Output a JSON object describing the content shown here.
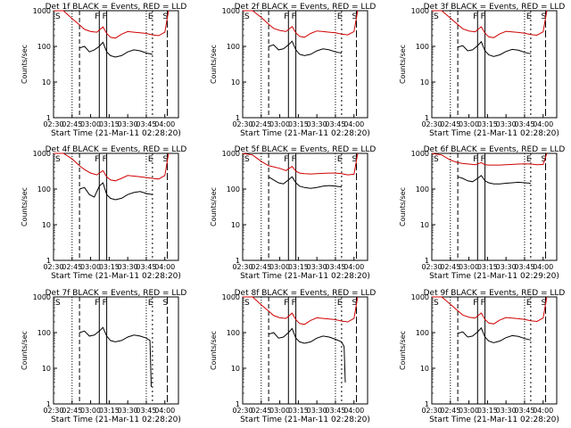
{
  "figure": {
    "background": "#ffffff",
    "colors": {
      "events": "#000000",
      "lld": "#d00000",
      "axes": "#000000"
    }
  },
  "chart_data": [
    {
      "type": "line",
      "title": "Det 1f BLACK = Events, RED = LLD",
      "xlabel": "Start Time (21-Mar-11 02:28:20)",
      "ylabel": "Counts/sec",
      "x_ticks": [
        "02:30",
        "02:45",
        "03:00",
        "03:15",
        "03:30",
        "03:45",
        "04:00"
      ],
      "y_ticks": [
        "1",
        "10",
        "100",
        "1000"
      ],
      "ylim": [
        1,
        1000
      ],
      "y_scale": "log",
      "markers": [
        "S",
        "F",
        "F",
        "E",
        "S"
      ],
      "series": [
        {
          "name": "Events",
          "x": [
            "02:51",
            "02:55",
            "02:59",
            "03:03",
            "03:07",
            "03:10",
            "03:13",
            "03:16",
            "03:20",
            "03:25",
            "03:30",
            "03:35",
            "03:40",
            "03:45",
            "03:50"
          ],
          "y": [
            90,
            100,
            70,
            80,
            100,
            130,
            70,
            55,
            50,
            55,
            70,
            80,
            75,
            65,
            60
          ]
        },
        {
          "name": "LLD",
          "x": [
            "02:30",
            "02:38",
            "02:45",
            "02:51",
            "02:55",
            "03:00",
            "03:05",
            "03:10",
            "03:13",
            "03:16",
            "03:20",
            "03:25",
            "03:30",
            "03:35",
            "03:40",
            "03:45",
            "03:50",
            "03:55",
            "04:00",
            "04:03"
          ],
          "y": [
            1000,
            1000,
            600,
            400,
            300,
            260,
            250,
            350,
            230,
            180,
            170,
            220,
            260,
            250,
            240,
            230,
            210,
            200,
            250,
            1000
          ]
        }
      ]
    },
    {
      "type": "line",
      "title": "Det 2f BLACK = Events, RED = LLD",
      "xlabel": "Start Time (21-Mar-11 02:28:20)",
      "ylabel": "Counts/sec",
      "x_ticks": [
        "02:30",
        "02:45",
        "03:00",
        "03:15",
        "03:30",
        "03:45",
        "04:00"
      ],
      "y_ticks": [
        "1",
        "10",
        "100",
        "1000"
      ],
      "ylim": [
        1,
        1000
      ],
      "y_scale": "log",
      "markers": [
        "S",
        "F",
        "F",
        "E",
        "S"
      ],
      "series": [
        {
          "name": "Events",
          "x": [
            "02:51",
            "02:55",
            "02:59",
            "03:03",
            "03:07",
            "03:10",
            "03:13",
            "03:16",
            "03:20",
            "03:25",
            "03:30",
            "03:35",
            "03:40",
            "03:45",
            "03:50"
          ],
          "y": [
            100,
            110,
            80,
            85,
            110,
            140,
            80,
            60,
            55,
            60,
            75,
            85,
            80,
            70,
            65
          ]
        },
        {
          "name": "LLD",
          "x": [
            "02:30",
            "02:38",
            "02:45",
            "02:51",
            "02:55",
            "03:00",
            "03:05",
            "03:10",
            "03:13",
            "03:16",
            "03:20",
            "03:25",
            "03:30",
            "03:35",
            "03:40",
            "03:45",
            "03:50",
            "03:55",
            "04:00",
            "04:03"
          ],
          "y": [
            1000,
            1000,
            650,
            420,
            320,
            280,
            260,
            360,
            240,
            190,
            180,
            230,
            270,
            260,
            250,
            240,
            220,
            210,
            260,
            1000
          ]
        }
      ]
    },
    {
      "type": "line",
      "title": "Det 3f BLACK = Events, RED = LLD",
      "xlabel": "Start Time (21-Mar-11 02:28:20)",
      "ylabel": "Counts/sec",
      "x_ticks": [
        "02:30",
        "02:45",
        "03:00",
        "03:15",
        "03:30",
        "03:45",
        "04:00"
      ],
      "y_ticks": [
        "1",
        "10",
        "100",
        "1000"
      ],
      "ylim": [
        1,
        1000
      ],
      "y_scale": "log",
      "markers": [
        "S",
        "F",
        "F",
        "E",
        "S"
      ],
      "series": [
        {
          "name": "Events",
          "x": [
            "02:51",
            "02:55",
            "02:59",
            "03:03",
            "03:07",
            "03:10",
            "03:13",
            "03:16",
            "03:20",
            "03:25",
            "03:30",
            "03:35",
            "03:40",
            "03:45",
            "03:50"
          ],
          "y": [
            95,
            105,
            75,
            80,
            105,
            135,
            75,
            58,
            52,
            58,
            72,
            82,
            78,
            68,
            62
          ]
        },
        {
          "name": "LLD",
          "x": [
            "02:30",
            "02:38",
            "02:45",
            "02:51",
            "02:55",
            "03:00",
            "03:05",
            "03:10",
            "03:13",
            "03:16",
            "03:20",
            "03:25",
            "03:30",
            "03:35",
            "03:40",
            "03:45",
            "03:50",
            "03:55",
            "04:00",
            "04:03"
          ],
          "y": [
            1000,
            1000,
            620,
            410,
            310,
            270,
            255,
            355,
            235,
            185,
            175,
            225,
            265,
            255,
            245,
            235,
            215,
            205,
            255,
            1000
          ]
        }
      ]
    },
    {
      "type": "line",
      "title": "Det 4f BLACK = Events, RED = LLD",
      "xlabel": "Start Time (21-Mar-11 02:28:20)",
      "ylabel": "Counts/sec",
      "x_ticks": [
        "02:30",
        "02:45",
        "03:00",
        "03:15",
        "03:30",
        "03:45",
        "04:00"
      ],
      "y_ticks": [
        "1",
        "10",
        "100",
        "1000"
      ],
      "ylim": [
        1,
        1000
      ],
      "y_scale": "log",
      "markers": [
        "S",
        "F",
        "F",
        "E",
        "S"
      ],
      "series": [
        {
          "name": "Events",
          "x": [
            "02:51",
            "02:55",
            "02:59",
            "03:03",
            "03:07",
            "03:10",
            "03:13",
            "03:16",
            "03:20",
            "03:25",
            "03:30",
            "03:35",
            "03:40",
            "03:45",
            "03:50"
          ],
          "y": [
            100,
            110,
            70,
            60,
            120,
            150,
            70,
            55,
            50,
            55,
            70,
            80,
            85,
            75,
            70
          ]
        },
        {
          "name": "LLD",
          "x": [
            "02:30",
            "02:38",
            "02:45",
            "02:51",
            "02:55",
            "03:00",
            "03:05",
            "03:10",
            "03:13",
            "03:16",
            "03:20",
            "03:25",
            "03:30",
            "03:35",
            "03:40",
            "03:45",
            "03:50",
            "03:55",
            "04:00",
            "04:03"
          ],
          "y": [
            1000,
            1000,
            700,
            450,
            350,
            280,
            250,
            330,
            220,
            180,
            170,
            200,
            240,
            230,
            220,
            210,
            200,
            190,
            240,
            1000
          ]
        }
      ]
    },
    {
      "type": "line",
      "title": "Det 5f BLACK = Events, RED = LLD",
      "xlabel": "Start Time (21-Mar-11 02:28:20)",
      "ylabel": "Counts/sec",
      "x_ticks": [
        "02:30",
        "02:45",
        "03:00",
        "03:15",
        "03:30",
        "03:45",
        "04:00"
      ],
      "y_ticks": [
        "1",
        "10",
        "100",
        "1000"
      ],
      "ylim": [
        1,
        1000
      ],
      "y_scale": "log",
      "markers": [
        "S",
        "F",
        "F",
        "E",
        "S"
      ],
      "series": [
        {
          "name": "Events",
          "x": [
            "02:51",
            "02:55",
            "02:59",
            "03:03",
            "03:07",
            "03:10",
            "03:13",
            "03:16",
            "03:20",
            "03:25",
            "03:30",
            "03:35",
            "03:40",
            "03:45",
            "03:50"
          ],
          "y": [
            220,
            180,
            150,
            140,
            180,
            220,
            150,
            120,
            110,
            105,
            110,
            120,
            125,
            120,
            115
          ]
        },
        {
          "name": "LLD",
          "x": [
            "02:30",
            "02:38",
            "02:45",
            "02:51",
            "02:55",
            "03:00",
            "03:05",
            "03:10",
            "03:13",
            "03:16",
            "03:20",
            "03:25",
            "03:30",
            "03:35",
            "03:40",
            "03:45",
            "03:50",
            "03:55",
            "04:00",
            "04:03"
          ],
          "y": [
            1000,
            900,
            600,
            450,
            420,
            380,
            330,
            430,
            320,
            280,
            270,
            265,
            270,
            275,
            280,
            280,
            270,
            250,
            260,
            1000
          ]
        }
      ]
    },
    {
      "type": "line",
      "title": "Det 6f BLACK = Events, RED = LLD",
      "xlabel": "Start Time (21-Mar-11 02:29:20)",
      "ylabel": "Counts/sec",
      "x_ticks": [
        "02:30",
        "02:45",
        "03:00",
        "03:15",
        "03:30",
        "03:45",
        "04:00"
      ],
      "y_ticks": [
        "1",
        "10",
        "100",
        "1000"
      ],
      "ylim": [
        1,
        1000
      ],
      "y_scale": "log",
      "markers": [
        "S",
        "F",
        "F",
        "E",
        "S"
      ],
      "series": [
        {
          "name": "Events",
          "x": [
            "02:51",
            "02:55",
            "02:59",
            "03:03",
            "03:07",
            "03:10",
            "03:13",
            "03:16",
            "03:20",
            "03:25",
            "03:30",
            "03:35",
            "03:40",
            "03:45",
            "03:50"
          ],
          "y": [
            220,
            200,
            170,
            160,
            200,
            240,
            170,
            150,
            140,
            140,
            145,
            150,
            155,
            150,
            145
          ]
        },
        {
          "name": "LLD",
          "x": [
            "02:30",
            "02:38",
            "02:45",
            "02:51",
            "02:55",
            "03:00",
            "03:05",
            "03:10",
            "03:13",
            "03:16",
            "03:20",
            "03:25",
            "03:30",
            "03:35",
            "03:40",
            "03:45",
            "03:50",
            "03:55",
            "04:00",
            "04:03"
          ],
          "y": [
            1000,
            900,
            650,
            550,
            520,
            500,
            480,
            550,
            480,
            470,
            470,
            470,
            480,
            490,
            500,
            510,
            500,
            480,
            490,
            1000
          ]
        }
      ]
    },
    {
      "type": "line",
      "title": "Det 7f BLACK = Events, RED = LLD",
      "xlabel": "Start Time (21-Mar-11 02:28:20)",
      "ylabel": "Counts/sec",
      "x_ticks": [
        "02:30",
        "02:45",
        "03:00",
        "03:15",
        "03:30",
        "03:45",
        "04:00"
      ],
      "y_ticks": [
        "1",
        "10",
        "100",
        "1000"
      ],
      "ylim": [
        1,
        1000
      ],
      "y_scale": "log",
      "markers": [
        "S",
        "F",
        "F",
        "E",
        "S"
      ],
      "series": [
        {
          "name": "Events",
          "x": [
            "02:51",
            "02:55",
            "02:59",
            "03:03",
            "03:07",
            "03:10",
            "03:13",
            "03:16",
            "03:20",
            "03:25",
            "03:30",
            "03:35",
            "03:40",
            "03:45",
            "03:48",
            "03:49"
          ],
          "y": [
            100,
            110,
            80,
            85,
            110,
            140,
            80,
            60,
            55,
            60,
            75,
            85,
            80,
            70,
            60,
            3
          ]
        }
      ]
    },
    {
      "type": "line",
      "title": "Det 8f BLACK = Events, RED = LLD",
      "xlabel": "Start Time (21-Mar-11 02:28:20)",
      "ylabel": "Counts/sec",
      "x_ticks": [
        "02:30",
        "02:45",
        "03:00",
        "03:15",
        "03:30",
        "03:45",
        "04:00"
      ],
      "y_ticks": [
        "1",
        "10",
        "100",
        "1000"
      ],
      "ylim": [
        1,
        1000
      ],
      "y_scale": "log",
      "markers": [
        "S",
        "F",
        "F",
        "E",
        "S"
      ],
      "series": [
        {
          "name": "Events",
          "x": [
            "02:51",
            "02:55",
            "02:59",
            "03:03",
            "03:07",
            "03:10",
            "03:13",
            "03:16",
            "03:20",
            "03:25",
            "03:30",
            "03:35",
            "03:40",
            "03:45",
            "03:50",
            "03:52",
            "03:53"
          ],
          "y": [
            90,
            100,
            70,
            75,
            100,
            130,
            70,
            55,
            50,
            55,
            70,
            80,
            75,
            65,
            55,
            40,
            4
          ]
        },
        {
          "name": "LLD",
          "x": [
            "02:30",
            "02:38",
            "02:45",
            "02:51",
            "02:55",
            "03:00",
            "03:05",
            "03:10",
            "03:13",
            "03:16",
            "03:20",
            "03:25",
            "03:30",
            "03:35",
            "03:40",
            "03:45",
            "03:50",
            "03:55",
            "04:00",
            "04:03"
          ],
          "y": [
            1000,
            1000,
            600,
            400,
            300,
            260,
            250,
            350,
            230,
            180,
            170,
            220,
            260,
            250,
            240,
            230,
            210,
            200,
            250,
            1000
          ]
        }
      ]
    },
    {
      "type": "line",
      "title": "Det 9f BLACK = Events, RED = LLD",
      "xlabel": "Start Time (21-Mar-11 02:28:20)",
      "ylabel": "Counts/sec",
      "x_ticks": [
        "02:30",
        "02:45",
        "03:00",
        "03:15",
        "03:30",
        "03:45",
        "04:00"
      ],
      "y_ticks": [
        "1",
        "10",
        "100",
        "1000"
      ],
      "ylim": [
        1,
        1000
      ],
      "y_scale": "log",
      "markers": [
        "S",
        "F",
        "F",
        "E",
        "S"
      ],
      "series": [
        {
          "name": "Events",
          "x": [
            "02:51",
            "02:55",
            "02:59",
            "03:03",
            "03:07",
            "03:10",
            "03:13",
            "03:16",
            "03:20",
            "03:25",
            "03:30",
            "03:35",
            "03:40",
            "03:45",
            "03:50"
          ],
          "y": [
            95,
            105,
            75,
            80,
            105,
            135,
            75,
            58,
            52,
            58,
            72,
            82,
            78,
            68,
            62
          ]
        },
        {
          "name": "LLD",
          "x": [
            "02:30",
            "02:38",
            "02:45",
            "02:51",
            "02:55",
            "03:00",
            "03:05",
            "03:10",
            "03:13",
            "03:16",
            "03:20",
            "03:25",
            "03:30",
            "03:35",
            "03:40",
            "03:45",
            "03:50",
            "03:55",
            "04:00",
            "04:03"
          ],
          "y": [
            1000,
            1000,
            620,
            410,
            310,
            270,
            255,
            355,
            235,
            185,
            175,
            225,
            265,
            255,
            245,
            235,
            215,
            205,
            255,
            1000
          ]
        }
      ]
    }
  ]
}
